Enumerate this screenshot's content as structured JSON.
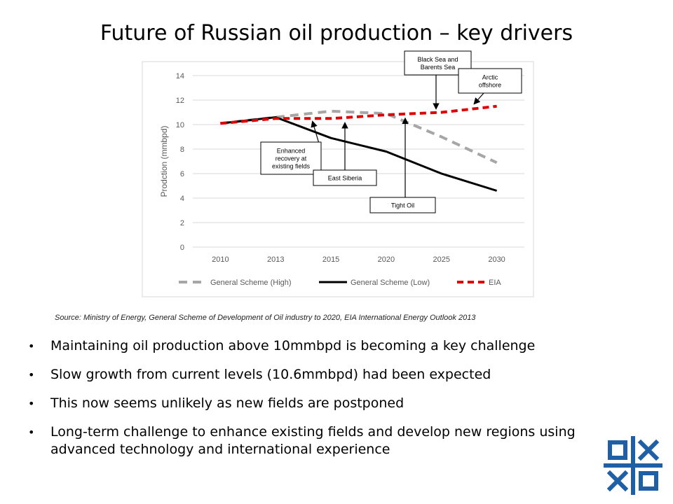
{
  "slide": {
    "title": "Future of Russian oil production – key drivers",
    "source": "Source: Ministry of Energy, General Scheme of Development of Oil industry to 2020, EIA International Energy Outlook 2013",
    "bullets": [
      "Maintaining oil production above 10mmbpd is becoming a key challenge",
      "Slow growth from current levels (10.6mmbpd) had been expected",
      "This now seems unlikely as new fields are postponed",
      "Long-term challenge to enhance existing fields and develop new regions using advanced technology and international experience"
    ],
    "colors": {
      "high": "#a6a6a6",
      "low": "#000000",
      "eia": "#e00000",
      "grid": "#d9d9d9"
    }
  },
  "chart_data": {
    "type": "line",
    "title": "",
    "xlabel": "",
    "ylabel": "Prodction (mmbpd)",
    "categories": [
      "2010",
      "2013",
      "2015",
      "2020",
      "2025",
      "2030"
    ],
    "ylim": [
      0,
      14
    ],
    "yticks": [
      0,
      2,
      4,
      6,
      8,
      10,
      12,
      14
    ],
    "grid": true,
    "legend_position": "bottom",
    "series": [
      {
        "name": "General Scheme (High)",
        "values": [
          10.1,
          10.6,
          11.1,
          10.9,
          9.0,
          6.9
        ],
        "style": "dashed",
        "color": "#a6a6a6"
      },
      {
        "name": "General Scheme (Low)",
        "values": [
          10.1,
          10.6,
          8.9,
          7.8,
          6.0,
          4.6
        ],
        "style": "solid",
        "color": "#000000"
      },
      {
        "name": "EIA",
        "values": [
          10.1,
          10.5,
          10.5,
          10.8,
          11.0,
          11.5
        ],
        "style": "dashed",
        "color": "#e00000"
      }
    ],
    "annotations": [
      "Enhanced recovery at existing fields",
      "East Siberia",
      "Tight Oil",
      "Black Sea and Barents Sea",
      "Arctic offshore"
    ]
  }
}
